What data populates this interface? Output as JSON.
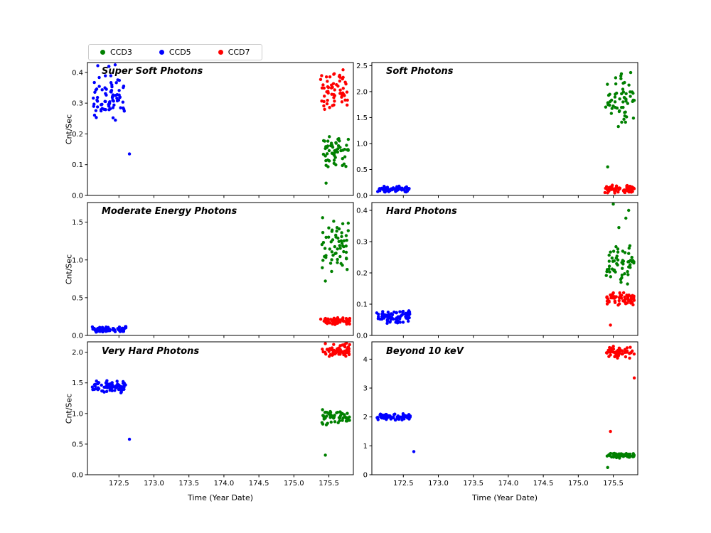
{
  "legend": {
    "items": [
      {
        "label": "CCD3",
        "color": "#008000"
      },
      {
        "label": "CCD5",
        "color": "#0000ff"
      },
      {
        "label": "CCD7",
        "color": "#ff0000"
      }
    ]
  },
  "chart_data": [
    {
      "id": "super-soft",
      "type": "scatter",
      "title": "Super Soft Photons",
      "xlabel": "Time (Year Date)",
      "ylabel": "Cnt/Sec",
      "xlim": [
        172.05,
        175.85
      ],
      "ylim": [
        0,
        0.432
      ],
      "xticks": [
        "172.5",
        "173.0",
        "173.5",
        "174.0",
        "174.5",
        "175.0",
        "175.5"
      ],
      "yticks": [
        "0.0",
        "0.1",
        "0.2",
        "0.3",
        "0.4"
      ],
      "show_xticklabels": false,
      "series": [
        {
          "name": "CCD3",
          "color": "#008000",
          "clusters": [
            {
              "x": [
                175.42,
                175.78
              ],
              "y": [
                0.085,
                0.2
              ],
              "n": 55,
              "seed": 104
            }
          ],
          "outliers": [
            [
              175.46,
              0.04
            ]
          ]
        },
        {
          "name": "CCD5",
          "color": "#0000ff",
          "clusters": [
            {
              "x": [
                172.12,
                172.58
              ],
              "y": [
                0.235,
                0.405
              ],
              "n": 75,
              "seed": 101
            },
            {
              "x": [
                172.15,
                172.45
              ],
              "y": [
                0.4,
                0.43
              ],
              "n": 4,
              "seed": 102
            }
          ],
          "outliers": [
            [
              172.65,
              0.135
            ]
          ]
        },
        {
          "name": "CCD7",
          "color": "#ff0000",
          "clusters": [
            {
              "x": [
                175.38,
                175.78
              ],
              "y": [
                0.27,
                0.42
              ],
              "n": 60,
              "seed": 103
            }
          ],
          "outliers": []
        }
      ]
    },
    {
      "id": "soft",
      "type": "scatter",
      "title": "Soft Photons",
      "xlabel": "Time (Year Date)",
      "ylabel": "Cnt/Sec",
      "xlim": [
        172.05,
        175.85
      ],
      "ylim": [
        0,
        2.56
      ],
      "xticks": [
        "172.5",
        "173.0",
        "173.5",
        "174.0",
        "174.5",
        "175.0",
        "175.5"
      ],
      "yticks": [
        "0.0",
        "0.5",
        "1.0",
        "1.5",
        "2.0",
        "2.5"
      ],
      "show_xticklabels": false,
      "series": [
        {
          "name": "CCD3",
          "color": "#008000",
          "clusters": [
            {
              "x": [
                175.38,
                175.8
              ],
              "y": [
                1.25,
                2.4
              ],
              "n": 60,
              "seed": 202
            }
          ],
          "outliers": [
            [
              175.42,
              0.55
            ]
          ]
        },
        {
          "name": "CCD5",
          "color": "#0000ff",
          "clusters": [
            {
              "x": [
                172.12,
                172.6
              ],
              "y": [
                0.06,
                0.18
              ],
              "n": 75,
              "seed": 201
            }
          ],
          "outliers": []
        },
        {
          "name": "CCD7",
          "color": "#ff0000",
          "clusters": [
            {
              "x": [
                175.38,
                175.8
              ],
              "y": [
                0.04,
                0.2
              ],
              "n": 65,
              "seed": 203
            }
          ],
          "outliers": []
        }
      ]
    },
    {
      "id": "moderate-energy",
      "type": "scatter",
      "title": "Moderate Energy Photons",
      "xlabel": "Time (Year Date)",
      "ylabel": "Cnt/Sec",
      "xlim": [
        172.05,
        175.85
      ],
      "ylim": [
        0,
        1.76
      ],
      "xticks": [
        "172.5",
        "173.0",
        "173.5",
        "174.0",
        "174.5",
        "175.0",
        "175.5"
      ],
      "yticks": [
        "0.0",
        "0.5",
        "1.0",
        "1.5"
      ],
      "show_xticklabels": false,
      "series": [
        {
          "name": "CCD3",
          "color": "#008000",
          "clusters": [
            {
              "x": [
                175.4,
                175.78
              ],
              "y": [
                0.78,
                1.58
              ],
              "n": 60,
              "seed": 302
            }
          ],
          "outliers": [
            [
              175.45,
              0.72
            ]
          ]
        },
        {
          "name": "CCD5",
          "color": "#0000ff",
          "clusters": [
            {
              "x": [
                172.12,
                172.6
              ],
              "y": [
                0.04,
                0.125
              ],
              "n": 75,
              "seed": 301
            }
          ],
          "outliers": []
        },
        {
          "name": "CCD7",
          "color": "#ff0000",
          "clusters": [
            {
              "x": [
                175.38,
                175.8
              ],
              "y": [
                0.14,
                0.24
              ],
              "n": 65,
              "seed": 303
            }
          ],
          "outliers": []
        }
      ]
    },
    {
      "id": "hard",
      "type": "scatter",
      "title": "Hard Photons",
      "xlabel": "Time (Year Date)",
      "ylabel": "Cnt/Sec",
      "xlim": [
        172.05,
        175.85
      ],
      "ylim": [
        0,
        0.425
      ],
      "xticks": [
        "172.5",
        "173.0",
        "173.5",
        "174.0",
        "174.5",
        "175.0",
        "175.5"
      ],
      "yticks": [
        "0.0",
        "0.1",
        "0.2",
        "0.3",
        "0.4"
      ],
      "show_xticklabels": false,
      "series": [
        {
          "name": "CCD3",
          "color": "#008000",
          "clusters": [
            {
              "x": [
                175.4,
                175.8
              ],
              "y": [
                0.145,
                0.31
              ],
              "n": 55,
              "seed": 402
            }
          ],
          "outliers": [
            [
              175.5,
              0.42
            ],
            [
              175.72,
              0.4
            ],
            [
              175.68,
              0.375
            ],
            [
              175.58,
              0.345
            ]
          ]
        },
        {
          "name": "CCD5",
          "color": "#0000ff",
          "clusters": [
            {
              "x": [
                172.12,
                172.6
              ],
              "y": [
                0.035,
                0.085
              ],
              "n": 75,
              "seed": 401
            }
          ],
          "outliers": []
        },
        {
          "name": "CCD7",
          "color": "#ff0000",
          "clusters": [
            {
              "x": [
                175.4,
                175.8
              ],
              "y": [
                0.095,
                0.14
              ],
              "n": 65,
              "seed": 403
            }
          ],
          "outliers": [
            [
              175.46,
              0.033
            ]
          ]
        }
      ]
    },
    {
      "id": "very-hard",
      "type": "scatter",
      "title": "Very Hard Photons",
      "xlabel": "Time (Year Date)",
      "ylabel": "Cnt/Sec",
      "xlim": [
        172.05,
        175.85
      ],
      "ylim": [
        0,
        2.17
      ],
      "xticks": [
        "172.5",
        "173.0",
        "173.5",
        "174.0",
        "174.5",
        "175.0",
        "175.5"
      ],
      "yticks": [
        "0.0",
        "0.5",
        "1.0",
        "1.5",
        "2.0"
      ],
      "show_xticklabels": true,
      "series": [
        {
          "name": "CCD3",
          "color": "#008000",
          "clusters": [
            {
              "x": [
                175.4,
                175.8
              ],
              "y": [
                0.8,
                1.08
              ],
              "n": 55,
              "seed": 503
            }
          ],
          "outliers": [
            [
              175.45,
              0.32
            ]
          ]
        },
        {
          "name": "CCD5",
          "color": "#0000ff",
          "clusters": [
            {
              "x": [
                172.12,
                172.6
              ],
              "y": [
                1.3,
                1.56
              ],
              "n": 75,
              "seed": 501
            }
          ],
          "outliers": [
            [
              172.65,
              0.58
            ]
          ]
        },
        {
          "name": "CCD7",
          "color": "#ff0000",
          "clusters": [
            {
              "x": [
                175.4,
                175.8
              ],
              "y": [
                1.9,
                2.15
              ],
              "n": 60,
              "seed": 502
            }
          ],
          "outliers": []
        }
      ]
    },
    {
      "id": "beyond-10-kev",
      "type": "scatter",
      "title": "Beyond 10 keV",
      "xlabel": "Time (Year Date)",
      "ylabel": "Cnt/Sec",
      "xlim": [
        172.05,
        175.85
      ],
      "ylim": [
        0,
        4.6
      ],
      "xticks": [
        "172.5",
        "173.0",
        "173.5",
        "174.0",
        "174.5",
        "175.0",
        "175.5"
      ],
      "yticks": [
        "0",
        "1",
        "2",
        "3",
        "4"
      ],
      "show_xticklabels": true,
      "series": [
        {
          "name": "CCD3",
          "color": "#008000",
          "clusters": [
            {
              "x": [
                175.4,
                175.8
              ],
              "y": [
                0.55,
                0.78
              ],
              "n": 60,
              "seed": 603
            }
          ],
          "outliers": [
            [
              175.42,
              0.25
            ]
          ]
        },
        {
          "name": "CCD5",
          "color": "#0000ff",
          "clusters": [
            {
              "x": [
                172.12,
                172.6
              ],
              "y": [
                1.87,
                2.13
              ],
              "n": 75,
              "seed": 601
            }
          ],
          "outliers": [
            [
              172.65,
              0.8
            ]
          ]
        },
        {
          "name": "CCD7",
          "color": "#ff0000",
          "clusters": [
            {
              "x": [
                175.4,
                175.8
              ],
              "y": [
                4.0,
                4.45
              ],
              "n": 60,
              "seed": 602
            }
          ],
          "outliers": [
            [
              175.46,
              1.5
            ],
            [
              175.8,
              3.35
            ]
          ]
        }
      ]
    }
  ]
}
